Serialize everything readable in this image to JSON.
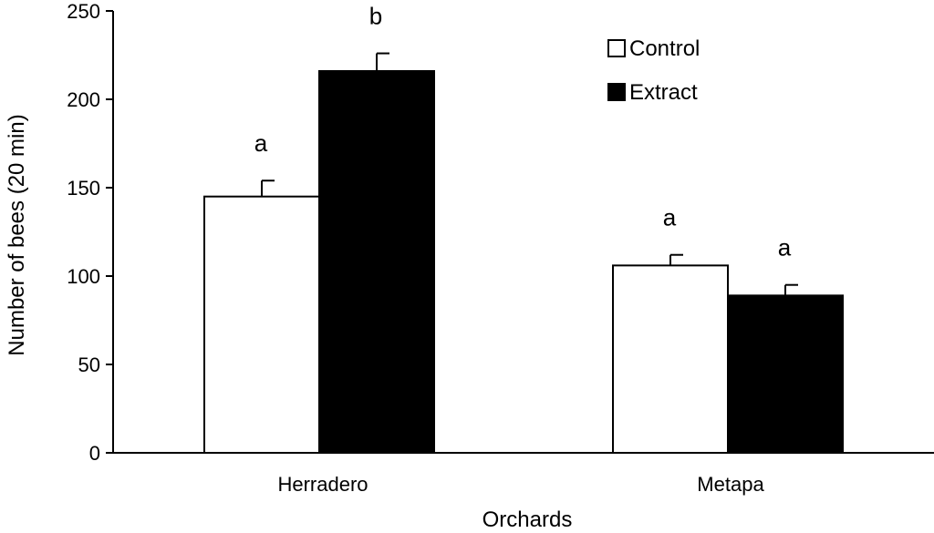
{
  "chart_data": {
    "type": "bar",
    "xlabel": "Orchards",
    "ylabel": "Number of bees (20 min)",
    "categories": [
      "Herradero",
      "Metapa"
    ],
    "ylim": [
      0,
      250
    ],
    "yticks": [
      0,
      50,
      100,
      150,
      200,
      250
    ],
    "series": [
      {
        "name": "Control",
        "values": [
          145,
          106
        ],
        "errors": [
          9,
          6
        ],
        "significance": [
          "a",
          "a"
        ],
        "fill": "#ffffff"
      },
      {
        "name": "Extract",
        "values": [
          216,
          89
        ],
        "errors": [
          10,
          6
        ],
        "significance": [
          "b",
          "a"
        ],
        "fill": "#000000"
      }
    ],
    "legend_position": "top-right",
    "grid": false
  }
}
